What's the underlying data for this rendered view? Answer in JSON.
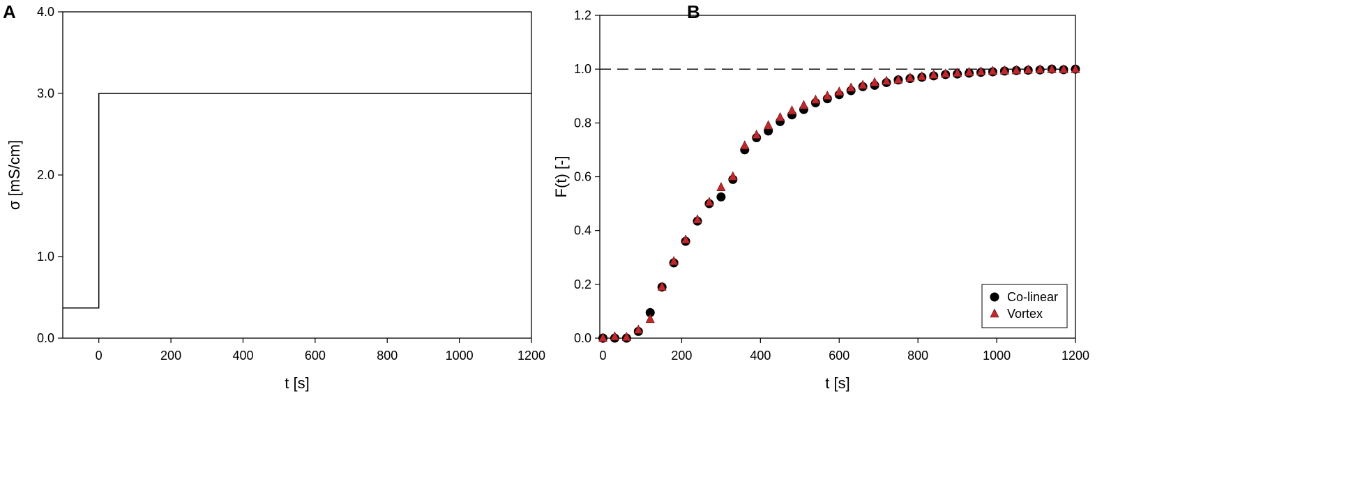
{
  "panels": {
    "a": {
      "letter": "A"
    },
    "b": {
      "letter": "B"
    }
  },
  "chart_data": [
    {
      "type": "line",
      "xlabel": "t [s]",
      "ylabel": "σ [mS/cm]",
      "xlim": [
        -100,
        1200
      ],
      "ylim": [
        0.0,
        4.0
      ],
      "xticks": [
        0,
        200,
        400,
        600,
        800,
        1000,
        1200
      ],
      "xtick_labels": [
        "0",
        "200",
        "400",
        "600",
        "800",
        "1000",
        "1200"
      ],
      "yticks": [
        0.0,
        1.0,
        2.0,
        3.0,
        4.0
      ],
      "ytick_labels": [
        "0.0",
        "1.0",
        "2.0",
        "3.0",
        "4.0"
      ],
      "grid": false,
      "series": [
        {
          "x": [
            -100,
            0,
            0,
            1200
          ],
          "y": [
            0.37,
            0.37,
            3.0,
            3.0
          ],
          "color": "#000000",
          "step": true
        }
      ]
    },
    {
      "type": "scatter",
      "xlabel": "t [s]",
      "ylabel": "F(t) [-]",
      "xlim": [
        -8,
        1200
      ],
      "ylim": [
        0.0,
        1.2
      ],
      "xticks": [
        0,
        200,
        400,
        600,
        800,
        1000,
        1200
      ],
      "xtick_labels": [
        "0",
        "200",
        "400",
        "600",
        "800",
        "1000",
        "1200"
      ],
      "yticks": [
        0.0,
        0.2,
        0.4,
        0.6,
        0.8,
        1.0,
        1.2
      ],
      "ytick_labels": [
        "0.0",
        "0.2",
        "0.4",
        "0.6",
        "0.8",
        "1.0",
        "1.2"
      ],
      "grid": false,
      "reference_line": {
        "y": 1.0,
        "style": "dashed",
        "color": "#000000"
      },
      "legend": "bottom-right",
      "x": [
        0,
        30,
        60,
        90,
        120,
        150,
        180,
        210,
        240,
        270,
        300,
        330,
        360,
        390,
        420,
        450,
        480,
        510,
        540,
        570,
        600,
        630,
        660,
        690,
        720,
        750,
        780,
        810,
        840,
        870,
        900,
        930,
        960,
        990,
        1020,
        1050,
        1080,
        1110,
        1140,
        1170,
        1200
      ],
      "series": [
        {
          "name": "Co-linear",
          "marker": "circle",
          "color": "#000000",
          "values": [
            0.0,
            0.0,
            0.0,
            0.025,
            0.095,
            0.19,
            0.28,
            0.36,
            0.435,
            0.5,
            0.525,
            0.59,
            0.7,
            0.745,
            0.77,
            0.805,
            0.83,
            0.85,
            0.875,
            0.89,
            0.905,
            0.92,
            0.935,
            0.94,
            0.95,
            0.96,
            0.965,
            0.97,
            0.975,
            0.98,
            0.982,
            0.985,
            0.988,
            0.99,
            0.993,
            0.995,
            0.996,
            0.997,
            1.0,
            0.998,
            1.0
          ]
        },
        {
          "name": "Vortex",
          "marker": "triangle",
          "color": "#c0282d",
          "values": [
            0.0,
            0.005,
            0.003,
            0.03,
            0.07,
            0.19,
            0.285,
            0.365,
            0.44,
            0.505,
            0.56,
            0.6,
            0.715,
            0.755,
            0.79,
            0.82,
            0.845,
            0.865,
            0.885,
            0.9,
            0.915,
            0.93,
            0.94,
            0.95,
            0.955,
            0.96,
            0.967,
            0.972,
            0.978,
            0.982,
            0.985,
            0.988,
            0.99,
            0.992,
            0.994,
            0.995,
            0.997,
            0.998,
            0.999,
            0.998,
            0.999
          ]
        }
      ]
    }
  ]
}
